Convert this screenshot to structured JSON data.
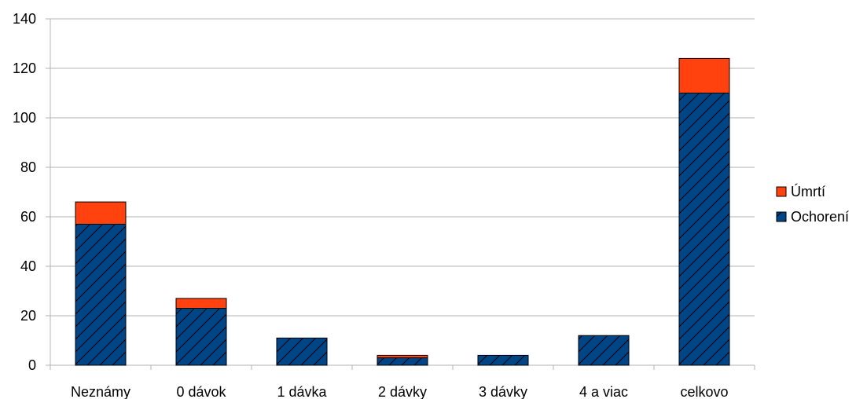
{
  "chart_data": {
    "type": "bar",
    "stacked": true,
    "categories": [
      "Neznámy",
      "0 dávok",
      "1 dávka",
      "2 dávky",
      "3 dávky",
      "4 a viac",
      "celkovo"
    ],
    "series": [
      {
        "name": "Ochorení",
        "values": [
          57,
          23,
          11,
          3,
          4,
          12,
          110
        ],
        "color": "#004586",
        "pattern": "diagonal-hatch"
      },
      {
        "name": "Úmrtí",
        "values": [
          9,
          4,
          0,
          1,
          0,
          0,
          14
        ],
        "color": "#ff420e"
      }
    ],
    "ylim": [
      0,
      140
    ],
    "yticks": [
      0,
      20,
      40,
      60,
      80,
      100,
      120,
      140
    ],
    "grid": true,
    "legend_position": "right",
    "legend_order": [
      "Úmrtí",
      "Ochorení"
    ]
  }
}
